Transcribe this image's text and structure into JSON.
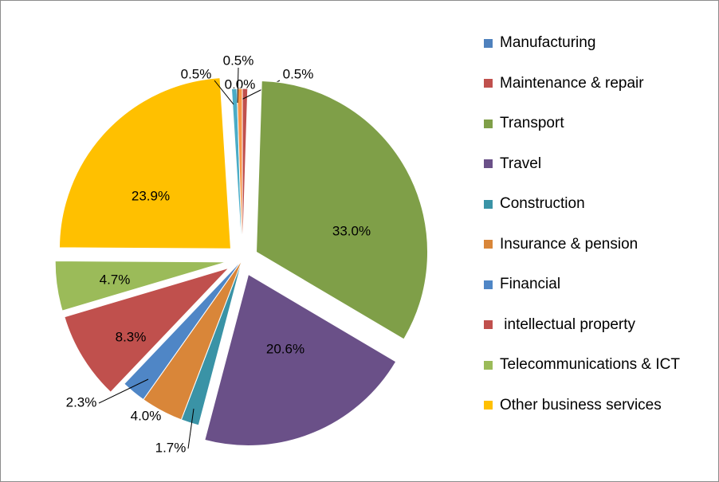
{
  "chart_data": {
    "type": "pie",
    "title": "",
    "slices": [
      {
        "name": "Manufacturing",
        "value": 0.0,
        "label": "0.0%",
        "color": "#4F81BD",
        "exploded": false
      },
      {
        "name": "Maintenance & repair",
        "value": 0.5,
        "label": "0.5%",
        "color": "#C0504D",
        "exploded": false
      },
      {
        "name": "Transport",
        "value": 33.0,
        "label": "33.0%",
        "color": "#7F9F48",
        "exploded": true
      },
      {
        "name": "Travel",
        "value": 20.6,
        "label": "20.6%",
        "color": "#6A5088",
        "exploded": true
      },
      {
        "name": "Construction",
        "value": 1.7,
        "label": "1.7%",
        "color": "#3A93A6",
        "exploded": false
      },
      {
        "name": "Insurance & pension",
        "value": 4.0,
        "label": "4.0%",
        "color": "#D98639",
        "exploded": false
      },
      {
        "name": "Financial",
        "value": 2.3,
        "label": "2.3%",
        "color": "#4F86C6",
        "exploded": false
      },
      {
        "name": " intellectual property",
        "value": 8.3,
        "label": "8.3%",
        "color": "#C0504D",
        "exploded": true
      },
      {
        "name": "Telecommunications & ICT",
        "value": 4.7,
        "label": "4.7%",
        "color": "#9BBB59",
        "exploded": true
      },
      {
        "name": "Other business services",
        "value": 23.9,
        "label": "23.9%",
        "color": "#FFC000",
        "exploded": true
      }
    ],
    "extra_small_slices": [
      {
        "label": "0.5%",
        "color": "#F79646"
      },
      {
        "label": "0.5%",
        "color": "#4BACC6"
      }
    ],
    "legend_position": "right"
  }
}
